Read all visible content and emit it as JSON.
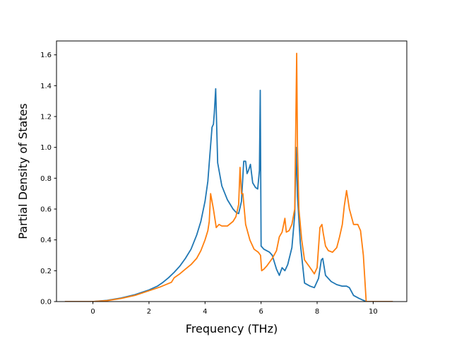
{
  "chart_data": {
    "type": "line",
    "xlabel": "Frequency (THz)",
    "ylabel": "Partial Density of States",
    "xlim": [
      -1.3,
      11.2
    ],
    "ylim": [
      0,
      1.69
    ],
    "xticks": [
      0,
      2,
      4,
      6,
      8,
      10
    ],
    "yticks": [
      0.0,
      0.2,
      0.4,
      0.6,
      0.8,
      1.0,
      1.2,
      1.4,
      1.6
    ],
    "xtick_labels": [
      "0",
      "2",
      "4",
      "6",
      "8",
      "10"
    ],
    "ytick_labels": [
      "0.0",
      "0.2",
      "0.4",
      "0.6",
      "0.8",
      "1.0",
      "1.2",
      "1.4",
      "1.6"
    ],
    "grid": false,
    "series": [
      {
        "color": "#1f77b4",
        "x": [
          -1.0,
          0.0,
          0.5,
          1.0,
          1.5,
          2.0,
          2.3,
          2.5,
          2.7,
          2.9,
          3.1,
          3.3,
          3.5,
          3.7,
          3.85,
          4.0,
          4.1,
          4.15,
          4.25,
          4.3,
          4.33,
          4.38,
          4.45,
          4.6,
          4.8,
          5.0,
          5.1,
          5.2,
          5.3,
          5.38,
          5.45,
          5.5,
          5.55,
          5.62,
          5.7,
          5.8,
          5.88,
          5.94,
          5.97,
          6.0,
          6.1,
          6.2,
          6.3,
          6.4,
          6.55,
          6.65,
          6.75,
          6.85,
          6.95,
          7.1,
          7.2,
          7.25,
          7.3,
          7.4,
          7.55,
          7.75,
          7.9,
          8.05,
          8.15,
          8.2,
          8.3,
          8.5,
          8.7,
          8.9,
          9.05,
          9.15,
          9.3,
          9.5,
          9.75,
          10.0,
          10.4,
          10.7
        ],
        "y": [
          0.0,
          0.0,
          0.008,
          0.023,
          0.045,
          0.075,
          0.1,
          0.125,
          0.155,
          0.19,
          0.23,
          0.28,
          0.34,
          0.43,
          0.52,
          0.65,
          0.78,
          0.9,
          1.13,
          1.15,
          1.22,
          1.38,
          0.9,
          0.75,
          0.66,
          0.6,
          0.58,
          0.57,
          0.65,
          0.91,
          0.91,
          0.83,
          0.85,
          0.89,
          0.77,
          0.74,
          0.73,
          0.85,
          1.37,
          0.36,
          0.34,
          0.33,
          0.32,
          0.3,
          0.21,
          0.17,
          0.22,
          0.2,
          0.24,
          0.35,
          0.56,
          1.0,
          0.68,
          0.38,
          0.12,
          0.1,
          0.09,
          0.15,
          0.27,
          0.28,
          0.17,
          0.13,
          0.11,
          0.1,
          0.1,
          0.09,
          0.04,
          0.02,
          0.0,
          0.0,
          0.0,
          0.0
        ]
      },
      {
        "color": "#ff7f0e",
        "x": [
          -1.0,
          0.0,
          0.5,
          1.0,
          1.5,
          2.0,
          2.4,
          2.8,
          2.9,
          3.1,
          3.3,
          3.5,
          3.7,
          3.85,
          4.0,
          4.1,
          4.15,
          4.2,
          4.3,
          4.4,
          4.5,
          4.6,
          4.8,
          5.0,
          5.1,
          5.2,
          5.25,
          5.3,
          5.35,
          5.45,
          5.6,
          5.75,
          5.9,
          5.98,
          6.02,
          6.1,
          6.2,
          6.4,
          6.55,
          6.65,
          6.75,
          6.85,
          6.9,
          7.0,
          7.1,
          7.2,
          7.27,
          7.3,
          7.35,
          7.45,
          7.55,
          7.75,
          7.9,
          8.0,
          8.1,
          8.17,
          8.22,
          8.3,
          8.4,
          8.55,
          8.7,
          8.8,
          8.9,
          8.97,
          9.05,
          9.15,
          9.3,
          9.45,
          9.55,
          9.65,
          9.75,
          10.0,
          10.7
        ],
        "y": [
          0.0,
          0.0,
          0.006,
          0.02,
          0.04,
          0.07,
          0.095,
          0.125,
          0.155,
          0.18,
          0.21,
          0.24,
          0.28,
          0.33,
          0.4,
          0.46,
          0.52,
          0.7,
          0.6,
          0.48,
          0.5,
          0.49,
          0.49,
          0.52,
          0.55,
          0.63,
          0.87,
          0.7,
          0.7,
          0.5,
          0.4,
          0.34,
          0.32,
          0.3,
          0.2,
          0.21,
          0.23,
          0.28,
          0.33,
          0.42,
          0.45,
          0.54,
          0.45,
          0.46,
          0.5,
          0.6,
          1.61,
          1.0,
          0.6,
          0.4,
          0.27,
          0.22,
          0.18,
          0.22,
          0.48,
          0.5,
          0.44,
          0.36,
          0.33,
          0.32,
          0.35,
          0.42,
          0.5,
          0.62,
          0.72,
          0.6,
          0.5,
          0.5,
          0.46,
          0.3,
          0.0,
          0.0,
          0.0
        ]
      }
    ]
  }
}
